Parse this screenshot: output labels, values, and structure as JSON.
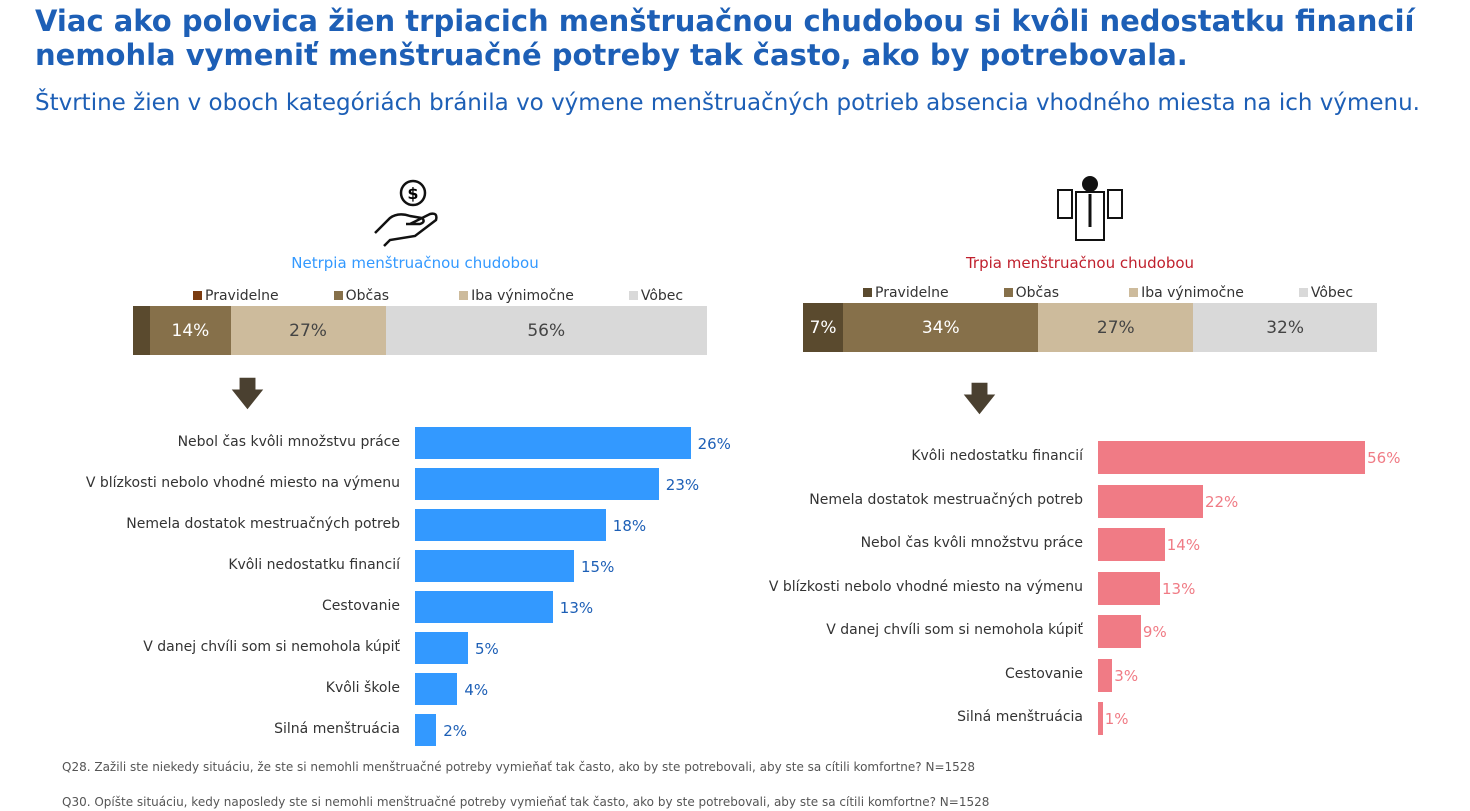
{
  "title": "Viac ako polovica žien trpiacich menštruačnou chudobou si kvôli nedostatku financií nemohla vymeniť menštruačné potreby tak často, ako by potrebovala.",
  "subtitle": "Štvrtine žien v oboch kategóriách bránila vo výmene menštruačných potrieb absencia vhodného miesta na ich výmenu.",
  "colors": {
    "pravidelne": "#5a4a2e",
    "obcas": "#86704a",
    "iba": "#cdbb9c",
    "vobec": "#d9d9d9",
    "blue": "#3399ff",
    "pink": "#f07b85"
  },
  "legend": [
    "Pravidelne",
    "Občas",
    "Iba výnimočne",
    "Vôbec"
  ],
  "chart_data": [
    {
      "type": "bar",
      "title": "Netrpia menštruačnou chudobou",
      "stacked": {
        "categories": [
          "Pravidelne",
          "Občas",
          "Iba výnimočne",
          "Vôbec"
        ],
        "values": [
          3,
          14,
          27,
          56
        ],
        "labels": [
          "",
          "14%",
          "27%",
          "56%"
        ]
      },
      "categories": [
        "Nebol čas kvôli množstvu práce",
        "V blízkosti nebolo vhodné miesto na výmenu",
        "Nemela dostatok mestruačných potreb",
        "Kvôli nedostatku financií",
        "Cestovanie",
        "V danej chvíli som si nemohola kúpiť",
        "Kvôli škole",
        "Silná menštruácia"
      ],
      "values": [
        26,
        23,
        18,
        15,
        13,
        5,
        4,
        2
      ],
      "labels": [
        "26%",
        "23%",
        "18%",
        "15%",
        "13%",
        "5%",
        "4%",
        "2%"
      ]
    },
    {
      "type": "bar",
      "title": "Trpia menštruačnou chudobou",
      "stacked": {
        "categories": [
          "Pravidelne",
          "Občas",
          "Iba výnimočne",
          "Vôbec"
        ],
        "values": [
          7,
          34,
          27,
          32
        ],
        "labels": [
          "7%",
          "34%",
          "27%",
          "32%"
        ]
      },
      "categories": [
        "Kvôli nedostatku financií",
        "Nemela dostatok mestruačných potreb",
        "Nebol čas kvôli množstvu práce",
        "V blízkosti nebolo vhodné miesto na výmenu",
        "V danej chvíli som si nemohola kúpiť",
        "Cestovanie",
        "Silná menštruácia"
      ],
      "values": [
        56,
        22,
        14,
        13,
        9,
        3,
        1
      ],
      "labels": [
        "56%",
        "22%",
        "14%",
        "13%",
        "9%",
        "3%",
        "1%"
      ]
    }
  ],
  "notes": [
    "Q28. Zažili ste niekedy situáciu, že ste si nemohli menštruačné potreby vymieňať tak často, ako by ste potrebovali, aby ste sa cítili komfortne? N=1528",
    "Q30. Opíšte situáciu, kedy naposledy ste si nemohli menštruačné potreby vymieňať tak často, ako by ste potrebovali, aby ste sa cítili komfortne? N=1528"
  ]
}
